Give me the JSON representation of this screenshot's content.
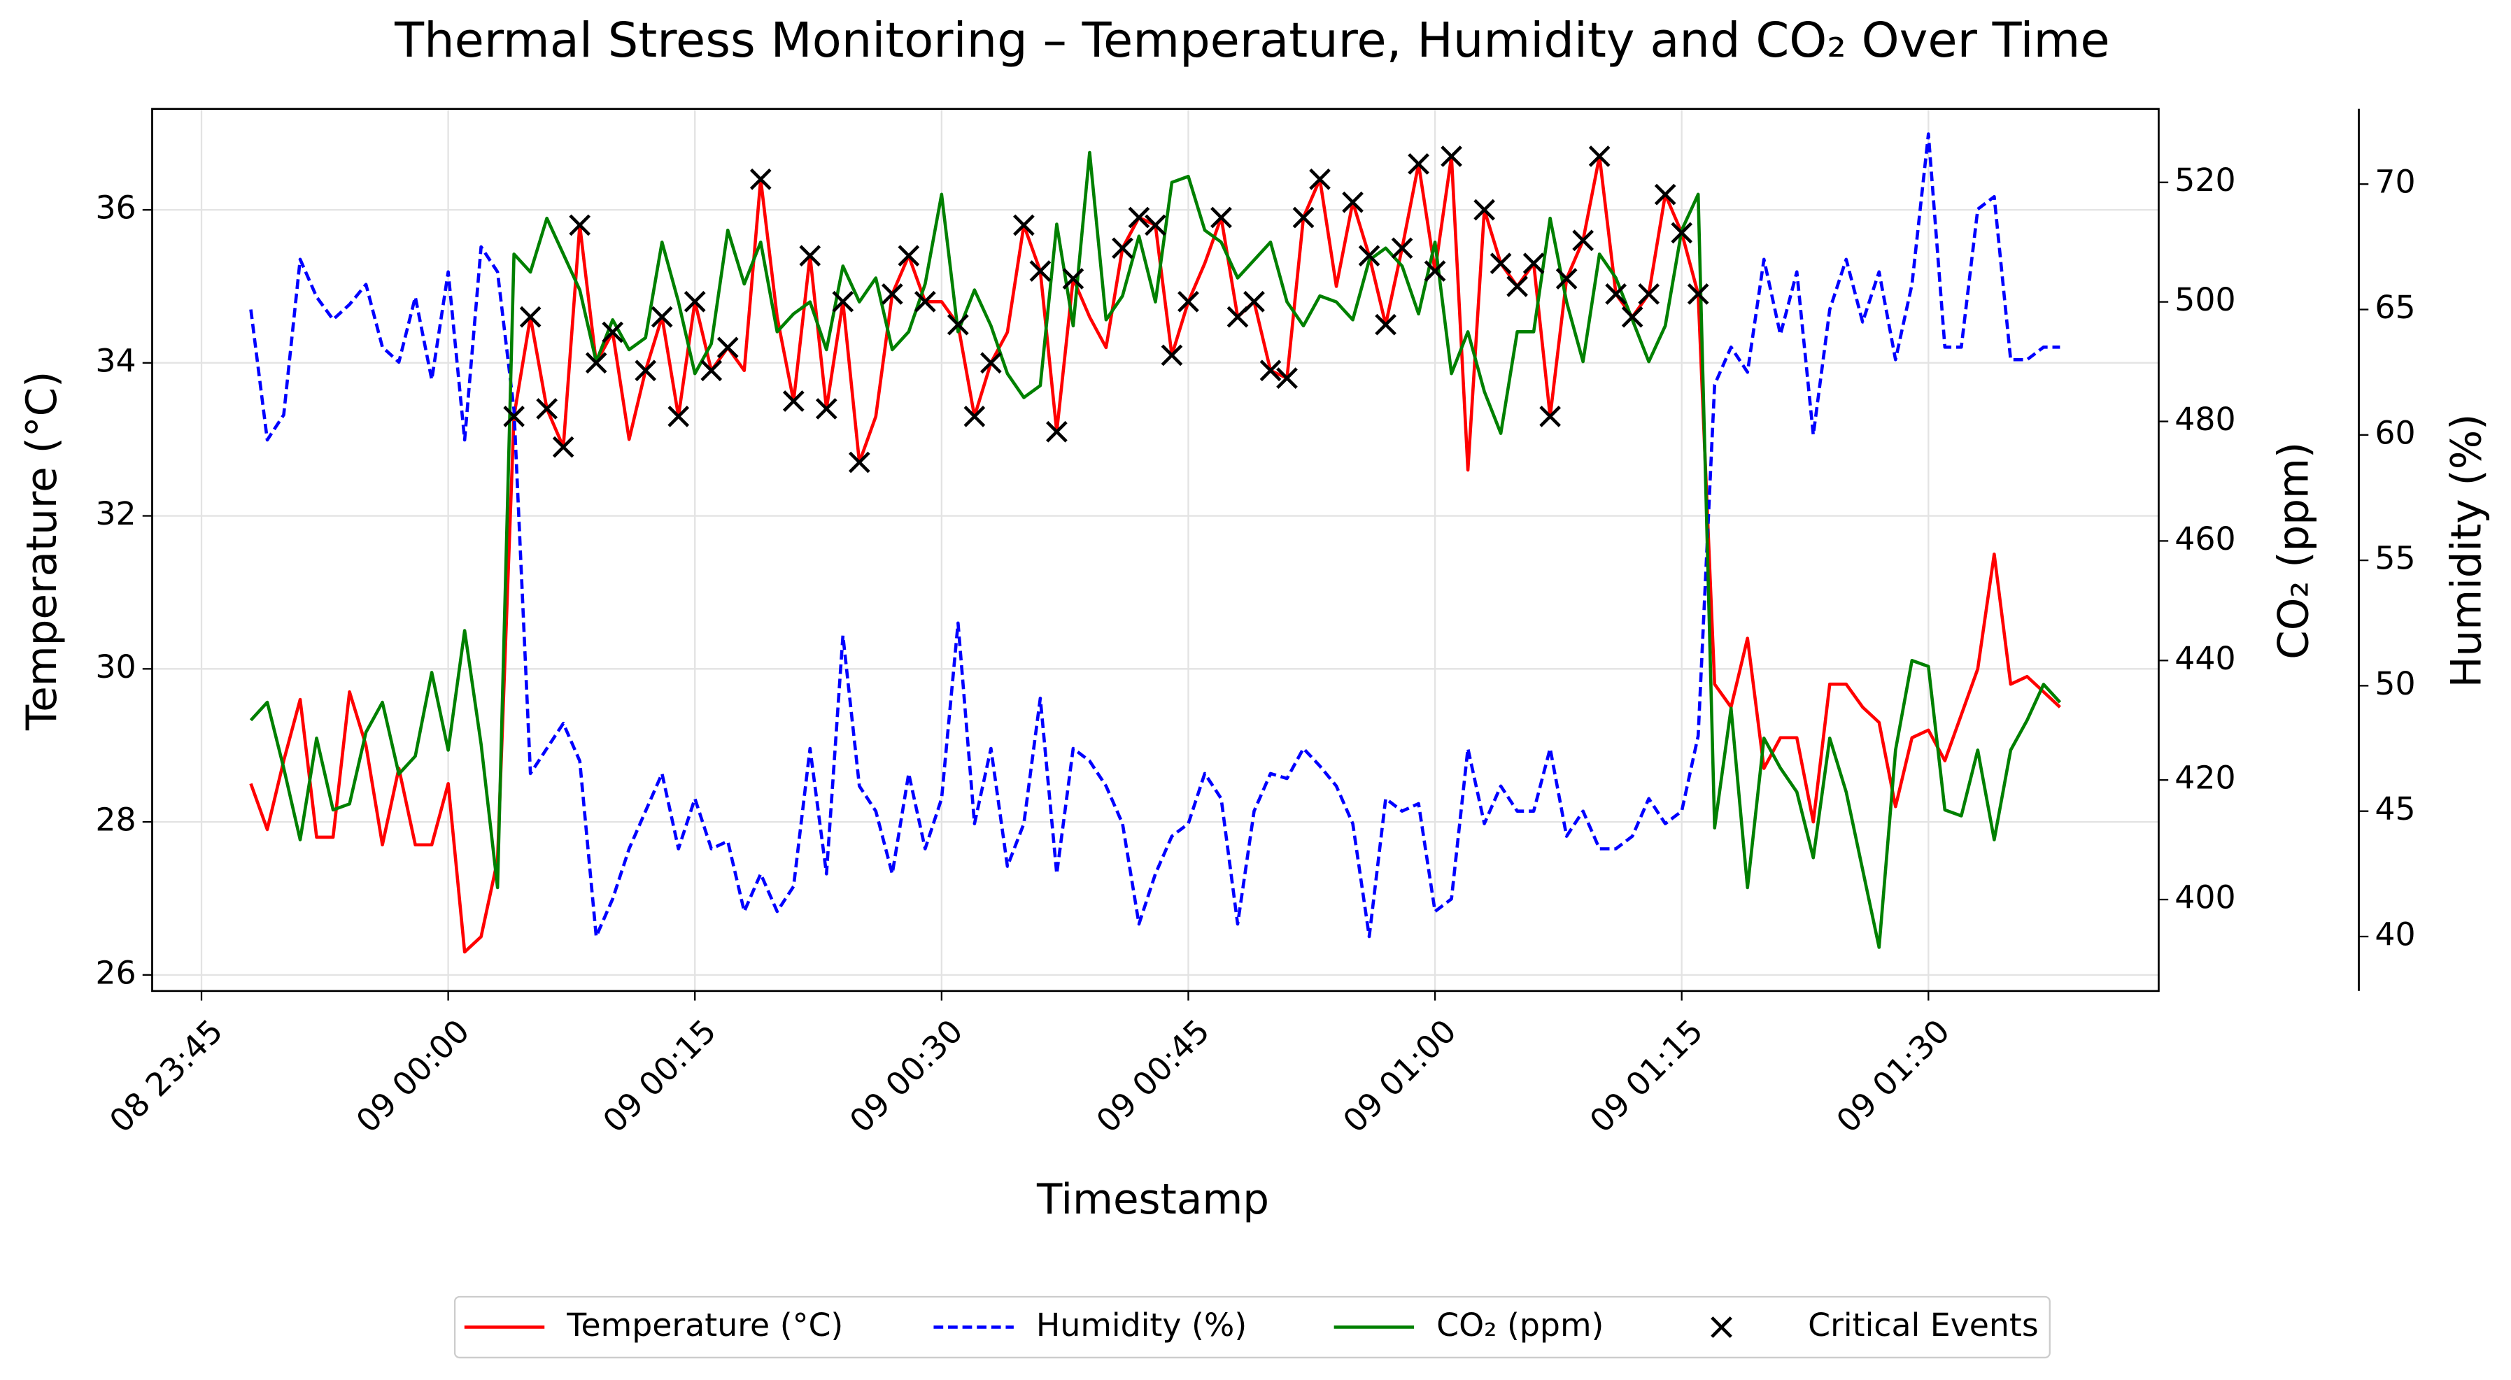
{
  "chart_data": {
    "type": "line",
    "title": "Thermal Stress Monitoring – Temperature, Humidity and CO₂ Over Time",
    "x_label": "Timestamp",
    "y_label": "Temperature (°C)",
    "y2_label": "CO₂ (ppm)",
    "y3_label": "Humidity (%)",
    "x": [
      "08 23:48",
      "08 23:49",
      "08 23:50",
      "08 23:51",
      "08 23:52",
      "08 23:53",
      "08 23:54",
      "08 23:55",
      "08 23:56",
      "08 23:57",
      "08 23:58",
      "08 23:59",
      "09 00:00",
      "09 00:01",
      "09 00:02",
      "09 00:03",
      "09 00:04",
      "09 00:05",
      "09 00:06",
      "09 00:07",
      "09 00:08",
      "09 00:09",
      "09 00:10",
      "09 00:11",
      "09 00:12",
      "09 00:13",
      "09 00:14",
      "09 00:15",
      "09 00:16",
      "09 00:17",
      "09 00:18",
      "09 00:19",
      "09 00:20",
      "09 00:21",
      "09 00:22",
      "09 00:23",
      "09 00:24",
      "09 00:25",
      "09 00:26",
      "09 00:27",
      "09 00:28",
      "09 00:29",
      "09 00:30",
      "09 00:31",
      "09 00:32",
      "09 00:33",
      "09 00:34",
      "09 00:35",
      "09 00:36",
      "09 00:37",
      "09 00:38",
      "09 00:39",
      "09 00:40",
      "09 00:41",
      "09 00:42",
      "09 00:43",
      "09 00:44",
      "09 00:45",
      "09 00:46",
      "09 00:47",
      "09 00:48",
      "09 00:49",
      "09 00:50",
      "09 00:51",
      "09 00:52",
      "09 00:53",
      "09 00:54",
      "09 00:55",
      "09 00:56",
      "09 00:57",
      "09 00:58",
      "09 00:59",
      "09 01:00",
      "09 01:01",
      "09 01:02",
      "09 01:03",
      "09 01:04",
      "09 01:05",
      "09 01:06",
      "09 01:07",
      "09 01:08",
      "09 01:09",
      "09 01:10",
      "09 01:11",
      "09 01:12",
      "09 01:13",
      "09 01:14",
      "09 01:15",
      "09 01:16",
      "09 01:17",
      "09 01:18",
      "09 01:19",
      "09 01:20",
      "09 01:21",
      "09 01:22",
      "09 01:23",
      "09 01:24",
      "09 01:25",
      "09 01:26",
      "09 01:27",
      "09 01:28",
      "09 01:29",
      "09 01:30",
      "09 01:31",
      "09 01:32",
      "09 01:33",
      "09 01:34",
      "09 01:35",
      "09 01:36",
      "09 01:37",
      "09 01:38"
    ],
    "xlim": [
      "08 23:42",
      "09 01:44"
    ],
    "xticks": [
      "08 23:45",
      "09 00:00",
      "09 00:15",
      "09 00:30",
      "09 00:45",
      "09 01:00",
      "09 01:15",
      "09 01:30"
    ],
    "ylim": [
      25.79,
      37.32
    ],
    "yticks": [
      26,
      28,
      30,
      32,
      34,
      36
    ],
    "y2lim": [
      384.7,
      532.3
    ],
    "y2ticks": [
      400,
      420,
      440,
      460,
      480,
      500,
      520
    ],
    "y3lim": [
      37.83,
      73.0
    ],
    "y3ticks": [
      40,
      45,
      50,
      55,
      60,
      65,
      70
    ],
    "grid": true,
    "legend": "lower center",
    "series": [
      {
        "name": "Temperature (°C)",
        "color": "#ff0000",
        "style": "solid",
        "values": [
          28.5,
          27.9,
          28.8,
          29.6,
          27.8,
          27.8,
          29.7,
          29.0,
          27.7,
          28.7,
          27.7,
          27.7,
          28.5,
          26.3,
          26.5,
          27.5,
          33.3,
          34.6,
          33.4,
          32.9,
          35.8,
          34.0,
          34.4,
          33.0,
          33.9,
          34.6,
          33.3,
          34.8,
          33.9,
          34.2,
          33.9,
          36.4,
          34.6,
          33.5,
          35.4,
          33.4,
          34.8,
          32.7,
          33.3,
          34.9,
          35.4,
          34.8,
          34.8,
          34.5,
          33.3,
          34.0,
          34.4,
          35.8,
          35.2,
          33.1,
          35.1,
          34.6,
          34.2,
          35.5,
          35.9,
          35.8,
          34.1,
          34.8,
          35.3,
          35.9,
          34.6,
          34.8,
          33.9,
          33.8,
          35.9,
          36.4,
          35.0,
          36.1,
          35.4,
          34.5,
          35.5,
          36.6,
          35.2,
          36.7,
          32.6,
          36.0,
          35.3,
          35.0,
          35.3,
          33.3,
          35.1,
          35.6,
          36.7,
          34.9,
          34.6,
          34.9,
          36.2,
          35.7,
          34.9,
          29.8,
          29.5,
          30.4,
          28.7,
          29.1,
          29.1,
          28.0,
          29.8,
          29.8,
          29.5,
          29.3,
          28.2,
          29.1,
          29.2,
          28.8,
          29.4,
          30.0,
          31.5,
          29.8,
          29.9,
          29.7,
          29.5
        ]
      },
      {
        "name": "Humidity (%)",
        "color": "#0000ff",
        "style": "dashed",
        "axis": "y3",
        "values": [
          65.0,
          59.8,
          60.8,
          67.0,
          65.5,
          64.6,
          65.2,
          66.0,
          63.5,
          62.9,
          65.5,
          62.2,
          66.5,
          59.8,
          67.5,
          66.5,
          61.0,
          46.5,
          47.5,
          48.5,
          47.0,
          40.0,
          41.5,
          43.5,
          45.0,
          46.5,
          43.5,
          45.5,
          43.5,
          43.8,
          41.0,
          42.5,
          41.0,
          42.0,
          47.5,
          42.5,
          52.0,
          46.0,
          45.0,
          42.5,
          46.5,
          43.5,
          45.5,
          52.5,
          44.5,
          47.5,
          42.8,
          44.5,
          49.5,
          42.5,
          47.5,
          47.0,
          46.0,
          44.5,
          40.5,
          42.5,
          44.0,
          44.5,
          46.5,
          45.5,
          40.5,
          45.0,
          46.5,
          46.3,
          47.5,
          46.8,
          46.0,
          44.5,
          40.0,
          45.5,
          45.0,
          45.3,
          41.0,
          41.5,
          47.5,
          44.5,
          46.0,
          45.0,
          45.0,
          47.5,
          44.0,
          45.0,
          43.5,
          43.5,
          44.0,
          45.5,
          44.5,
          45.0,
          48.0,
          62.0,
          63.5,
          62.5,
          67.0,
          64.0,
          66.5,
          60.0,
          65.0,
          67.0,
          64.5,
          66.5,
          63.0,
          66.0,
          72.0,
          63.5,
          63.5,
          69.0,
          69.5,
          63.0,
          63.0,
          63.5,
          63.5
        ]
      },
      {
        "name": "CO₂ (ppm)",
        "color": "#008000",
        "style": "solid",
        "axis": "y2",
        "values": [
          430,
          433,
          422,
          410,
          427,
          415,
          416,
          428,
          433,
          421,
          424,
          438,
          425,
          445,
          426,
          402,
          508,
          505,
          514,
          508,
          502,
          490,
          497,
          492,
          494,
          510,
          500,
          488,
          493,
          512,
          503,
          510,
          495,
          498,
          500,
          492,
          506,
          500,
          504,
          492,
          495,
          503,
          518,
          495,
          502,
          496,
          488,
          484,
          486,
          513,
          496,
          525,
          497,
          501,
          511,
          500,
          520,
          521,
          512,
          510,
          504,
          507,
          510,
          500,
          496,
          501,
          500,
          497,
          507,
          509,
          506,
          498,
          510,
          488,
          495,
          485,
          478,
          495,
          495,
          514,
          500,
          490,
          508,
          504,
          497,
          490,
          496,
          512,
          518,
          412,
          432,
          402,
          427,
          422,
          418,
          407,
          427,
          418,
          405,
          392,
          425,
          440,
          439,
          415,
          414,
          425,
          410,
          425,
          430,
          436,
          433
        ]
      },
      {
        "name": "Critical Events",
        "type": "scatter",
        "marker": "x",
        "color": "#000000",
        "x": [
          "09 00:04",
          "09 00:05",
          "09 00:06",
          "09 00:07",
          "09 00:08",
          "09 00:09",
          "09 00:10",
          "09 00:12",
          "09 00:13",
          "09 00:14",
          "09 00:15",
          "09 00:16",
          "09 00:17",
          "09 00:19",
          "09 00:21",
          "09 00:22",
          "09 00:23",
          "09 00:24",
          "09 00:25",
          "09 00:27",
          "09 00:28",
          "09 00:29",
          "09 00:31",
          "09 00:32",
          "09 00:33",
          "09 00:35",
          "09 00:36",
          "09 00:37",
          "09 00:38",
          "09 00:41",
          "09 00:42",
          "09 00:43",
          "09 00:44",
          "09 00:45",
          "09 00:47",
          "09 00:48",
          "09 00:49",
          "09 00:50",
          "09 00:51",
          "09 00:52",
          "09 00:53",
          "09 00:55",
          "09 00:56",
          "09 00:57",
          "09 00:58",
          "09 00:59",
          "09 01:00",
          "09 01:01",
          "09 01:03",
          "09 01:04",
          "09 01:05",
          "09 01:06",
          "09 01:07",
          "09 01:08",
          "09 01:09",
          "09 01:10",
          "09 01:11",
          "09 01:12",
          "09 01:13",
          "09 01:14",
          "09 01:15",
          "09 01:16"
        ],
        "values": [
          33.3,
          34.6,
          33.4,
          32.9,
          35.8,
          34.0,
          34.4,
          33.9,
          34.6,
          33.3,
          34.8,
          33.9,
          34.2,
          36.4,
          33.5,
          35.4,
          33.4,
          34.8,
          32.7,
          34.9,
          35.4,
          34.8,
          34.5,
          33.3,
          34.0,
          35.8,
          35.2,
          33.1,
          35.1,
          35.5,
          35.9,
          35.8,
          34.1,
          34.8,
          35.9,
          34.6,
          34.8,
          33.9,
          33.8,
          35.9,
          36.4,
          36.1,
          35.4,
          34.5,
          35.5,
          36.6,
          35.2,
          36.7,
          36.0,
          35.3,
          35.0,
          35.3,
          33.3,
          35.1,
          35.6,
          36.7,
          34.9,
          34.6,
          34.9,
          36.2,
          35.7,
          34.9
        ]
      }
    ]
  }
}
